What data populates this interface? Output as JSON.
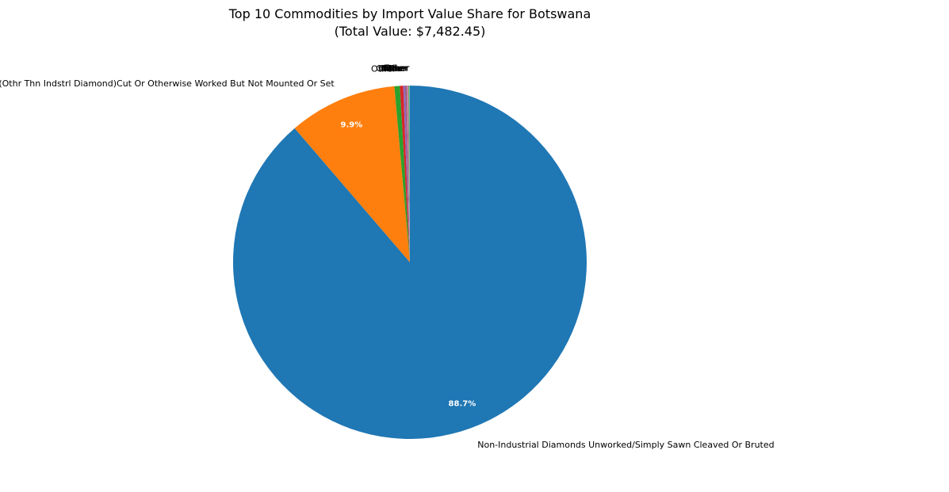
{
  "chart_data": {
    "type": "pie",
    "title": "Top 10 Commodities by Import Value Share for Botswana",
    "subtitle": "(Total Value: $7,482.45)",
    "start_angle_deg": 90,
    "direction": "clockwise",
    "slices": [
      {
        "label": "Non-Industrial Diamonds Unworked/Simply Sawn Cleaved Or Bruted",
        "value": 88.7,
        "pct_label": "88.7%",
        "color": "#1f77b4"
      },
      {
        "label": "Diamond(Othr Thn Indstrl Diamond)Cut Or Otherwise Worked But Not Mounted Or Set",
        "value": 9.9,
        "pct_label": "9.9%",
        "color": "#ff7f0e"
      },
      {
        "label": "Other",
        "value": 0.5,
        "pct_label": "",
        "color": "#2ca02c"
      },
      {
        "label": "Other",
        "value": 0.3,
        "pct_label": "",
        "color": "#d62728"
      },
      {
        "label": "Other",
        "value": 0.2,
        "pct_label": "",
        "color": "#9467bd"
      },
      {
        "label": "Other",
        "value": 0.1,
        "pct_label": "",
        "color": "#8c564b"
      },
      {
        "label": "Other",
        "value": 0.1,
        "pct_label": "",
        "color": "#e377c2"
      },
      {
        "label": "Other",
        "value": 0.1,
        "pct_label": "",
        "color": "#7f7f7f"
      },
      {
        "label": "Other",
        "value": 0.05,
        "pct_label": "",
        "color": "#bcbd22"
      },
      {
        "label": "Other",
        "value": 0.05,
        "pct_label": "",
        "color": "#17becf"
      }
    ]
  }
}
